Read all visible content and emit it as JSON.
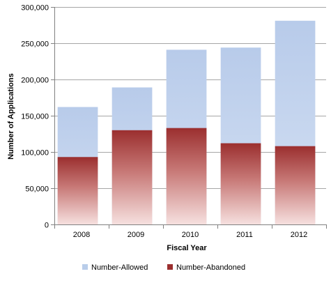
{
  "chart_data": {
    "type": "bar",
    "title": "",
    "xlabel": "Fiscal Year",
    "ylabel": "Number of Applications",
    "categories": [
      "2008",
      "2009",
      "2010",
      "2011",
      "2012"
    ],
    "ylim": [
      0,
      300000
    ],
    "yticks": [
      0,
      50000,
      100000,
      150000,
      200000,
      250000,
      300000
    ],
    "ytick_labels": [
      "0",
      "50,000",
      "100,000",
      "150,000",
      "200,000",
      "250,000",
      "300,000"
    ],
    "grid": "horizontal major gridlines",
    "legend_position": "bottom",
    "series": [
      {
        "name": "Number-Allowed",
        "values": [
          162000,
          189000,
          241000,
          244000,
          281000
        ],
        "color": "#b9cdea"
      },
      {
        "name": "Number-Abandoned",
        "values": [
          93000,
          130000,
          133000,
          112000,
          108000
        ],
        "color": "#9b2f2f"
      }
    ]
  }
}
